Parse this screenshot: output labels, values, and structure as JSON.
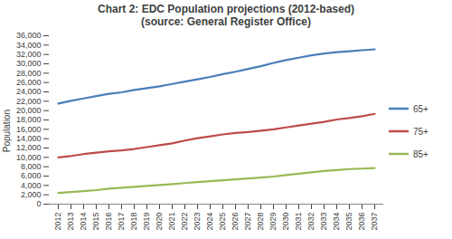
{
  "chart_data": {
    "type": "line",
    "title": "Chart 2: EDC Population projections (2012-based)",
    "subtitle": "(source: General Register Office)",
    "y_label": "Population",
    "categories": [
      "2012",
      "2013",
      "2014",
      "2015",
      "2016",
      "2017",
      "2018",
      "2019",
      "2020",
      "2021",
      "2022",
      "2023",
      "2024",
      "2025",
      "2026",
      "2027",
      "2028",
      "2029",
      "2030",
      "2031",
      "2032",
      "2033",
      "2034",
      "2035",
      "2036",
      "2037"
    ],
    "series": [
      {
        "name": "65+",
        "color": "#4a7ebb",
        "values": [
          21500,
          22100,
          22600,
          23100,
          23600,
          23900,
          24400,
          24800,
          25200,
          25700,
          26200,
          26700,
          27200,
          27800,
          28300,
          28900,
          29500,
          30200,
          30800,
          31300,
          31800,
          32200,
          32500,
          32700,
          32900,
          33100
        ]
      },
      {
        "name": "75+",
        "color": "#be4b48",
        "values": [
          10000,
          10300,
          10700,
          11000,
          11300,
          11500,
          11800,
          12200,
          12600,
          13000,
          13600,
          14100,
          14500,
          14900,
          15200,
          15400,
          15700,
          16000,
          16400,
          16800,
          17200,
          17600,
          18100,
          18400,
          18800,
          19300
        ]
      },
      {
        "name": "85+",
        "color": "#98b954",
        "values": [
          2400,
          2600,
          2800,
          3000,
          3300,
          3500,
          3700,
          3900,
          4100,
          4300,
          4500,
          4700,
          4900,
          5100,
          5300,
          5500,
          5700,
          5900,
          6200,
          6500,
          6800,
          7100,
          7300,
          7500,
          7600,
          7700
        ]
      }
    ],
    "ylim": [
      0,
      36000
    ],
    "yticks": [
      0,
      {
        "value": 2000,
        "label": "2,000"
      },
      {
        "value": 4000,
        "label": "4,000"
      },
      {
        "value": 6000,
        "label": "6,000"
      },
      {
        "value": 8000,
        "label": "8,000"
      },
      {
        "value": 10000,
        "label": "10,000"
      },
      {
        "value": 12000,
        "label": "12,000"
      },
      {
        "value": 14000,
        "label": "14,000"
      },
      {
        "value": 16000,
        "label": "16,000"
      },
      {
        "value": 18000,
        "label": "18,000"
      },
      {
        "value": 20000,
        "label": "20,000"
      },
      {
        "value": 22000,
        "label": "22,000"
      },
      {
        "value": 24000,
        "label": "24,000"
      },
      {
        "value": 26000,
        "label": "26,000"
      },
      {
        "value": 28000,
        "label": "28,000"
      },
      {
        "value": 30000,
        "label": "30,000"
      },
      {
        "value": 32000,
        "label": "32,000"
      },
      {
        "value": 34000,
        "label": "34,000"
      },
      {
        "value": 36000,
        "label": "36,000"
      }
    ],
    "grid": false,
    "legend": "right"
  }
}
